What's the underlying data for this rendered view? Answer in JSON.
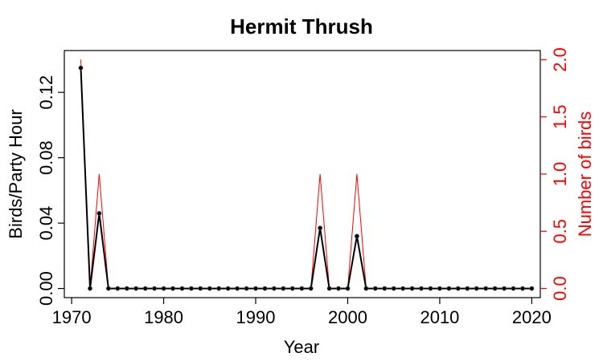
{
  "chart_data": {
    "type": "line",
    "title": "Hermit Thrush",
    "xlabel": "Year",
    "ylabel": "Birds/Party Hour",
    "y2label": "Number of birds",
    "xlim": [
      1970,
      2020
    ],
    "ylim": [
      0,
      0.14
    ],
    "y2lim": [
      0,
      2.0
    ],
    "xticks": [
      "1970",
      "1980",
      "1990",
      "2000",
      "2010",
      "2020"
    ],
    "yticks": [
      "0.00",
      "0.04",
      "0.08",
      "0.12"
    ],
    "y2ticks": [
      "0.0",
      "0.5",
      "1.0",
      "1.5",
      "2.0"
    ],
    "colors": {
      "birds_per_party_hour": "#000000",
      "number_of_birds": "#ff0000",
      "axis2": "#ff0000"
    },
    "x": [
      1971,
      1972,
      1973,
      1974,
      1975,
      1976,
      1977,
      1978,
      1979,
      1980,
      1981,
      1982,
      1983,
      1984,
      1985,
      1986,
      1987,
      1988,
      1989,
      1990,
      1991,
      1992,
      1993,
      1994,
      1995,
      1996,
      1997,
      1998,
      1999,
      2000,
      2001,
      2002,
      2003,
      2004,
      2005,
      2006,
      2007,
      2008,
      2009,
      2010,
      2011,
      2012,
      2013,
      2014,
      2015,
      2016,
      2017,
      2018,
      2019,
      2020
    ],
    "series": [
      {
        "axis": "left",
        "values": [
          0.135,
          0,
          0.046,
          0,
          0,
          0,
          0,
          0,
          0,
          0,
          0,
          0,
          0,
          0,
          0,
          0,
          0,
          0,
          0,
          0,
          0,
          0,
          0,
          0,
          0,
          0,
          0.037,
          0,
          0,
          0,
          0.032,
          0,
          0,
          0,
          0,
          0,
          0,
          0,
          0,
          0,
          0,
          0,
          0,
          0,
          0,
          0,
          0,
          0,
          0,
          0
        ]
      },
      {
        "axis": "right",
        "values": [
          2,
          0,
          1,
          0,
          0,
          0,
          0,
          0,
          0,
          0,
          0,
          0,
          0,
          0,
          0,
          0,
          0,
          0,
          0,
          0,
          0,
          0,
          0,
          0,
          0,
          0,
          1,
          0,
          0,
          0,
          1,
          0,
          0,
          0,
          0,
          0,
          0,
          0,
          0,
          0,
          0,
          0,
          0,
          0,
          0,
          0,
          0,
          0,
          0,
          0
        ]
      }
    ]
  }
}
